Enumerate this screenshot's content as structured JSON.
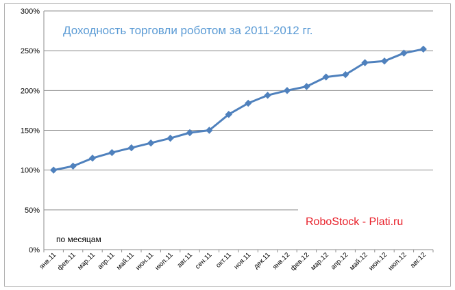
{
  "chart_data": {
    "type": "line",
    "title": "Доходность торговли роботом за 2011-2012 гг.",
    "xlabel": "по месяцам",
    "ylabel": "",
    "annotation": "RoboStock - Plati.ru",
    "categories": [
      "янв.11",
      "фев.11",
      "мар.11",
      "апр.11",
      "май.11",
      "июн.11",
      "июл.11",
      "авг.11",
      "сен.11",
      "окт.11",
      "ноя.11",
      "дек.11",
      "янв.12",
      "фев.12",
      "мар.12",
      "апр.12",
      "май.12",
      "июн.12",
      "июл.12",
      "авг.12"
    ],
    "series": [
      {
        "values": [
          100,
          105,
          115,
          122,
          128,
          134,
          140,
          147,
          150,
          170,
          184,
          194,
          200,
          205,
          217,
          220,
          235,
          237,
          247,
          252
        ]
      }
    ],
    "yticks": [
      "0%",
      "50%",
      "100%",
      "150%",
      "200%",
      "250%",
      "300%"
    ],
    "ylim": [
      0,
      300
    ],
    "grid": true,
    "line_color": "#4f81bd"
  }
}
